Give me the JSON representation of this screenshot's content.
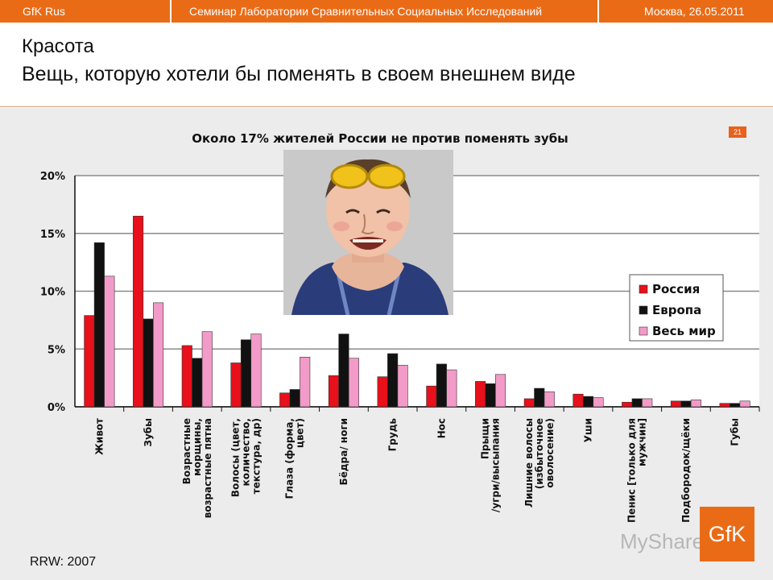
{
  "topbar": {
    "brand": "GfK Rus",
    "seminar": "Семинар Лаборатории Сравнительных Социальных Исследований",
    "place_date": "Москва, 26.05.2011"
  },
  "slide": {
    "title_line1": "Красота",
    "title_line2": "Вещь, которую хотели бы поменять в своем внешнем виде",
    "page_number": "21",
    "subtitle": "Около 17% жителей России не против поменять зубы",
    "source": "RRW: 2007",
    "logo_text": "GfK",
    "watermark": "MyShared"
  },
  "colors": {
    "russia": "#e8101a",
    "europe": "#111111",
    "world": "#f29bc8",
    "brand_orange": "#ea6b16"
  },
  "chart_data": {
    "type": "bar",
    "categories": [
      "Живот",
      "Зубы",
      "Возрастные морщины, возрастные пятна",
      "Волосы (цвет, количество, текстура, др)",
      "Глаза (форма, цвет)",
      "Бёдра/ ноги",
      "Грудь",
      "Нос",
      "Прыщи /угри/высыпания",
      "Лишние волосы (избыточное оволосение)",
      "Уши",
      "Пенис [только для мужчин]",
      "Подбородок/щёки",
      "Губы"
    ],
    "series": [
      {
        "name": "Россия",
        "values": [
          7.9,
          16.5,
          5.3,
          3.8,
          1.2,
          2.7,
          2.6,
          1.8,
          2.2,
          0.7,
          1.1,
          0.4,
          0.5,
          0.3
        ]
      },
      {
        "name": "Европа",
        "values": [
          14.2,
          7.6,
          4.2,
          5.8,
          1.5,
          6.3,
          4.6,
          3.7,
          2.0,
          1.6,
          0.9,
          0.7,
          0.5,
          0.3
        ]
      },
      {
        "name": "Весь мир",
        "values": [
          11.3,
          9.0,
          6.5,
          6.3,
          4.3,
          4.2,
          3.6,
          3.2,
          2.8,
          1.3,
          0.8,
          0.7,
          0.6,
          0.5
        ]
      }
    ],
    "yticks": [
      "0%",
      "5%",
      "10%",
      "15%",
      "20%"
    ],
    "ylim": [
      0,
      20
    ],
    "grid": true,
    "legend_position": "right"
  }
}
